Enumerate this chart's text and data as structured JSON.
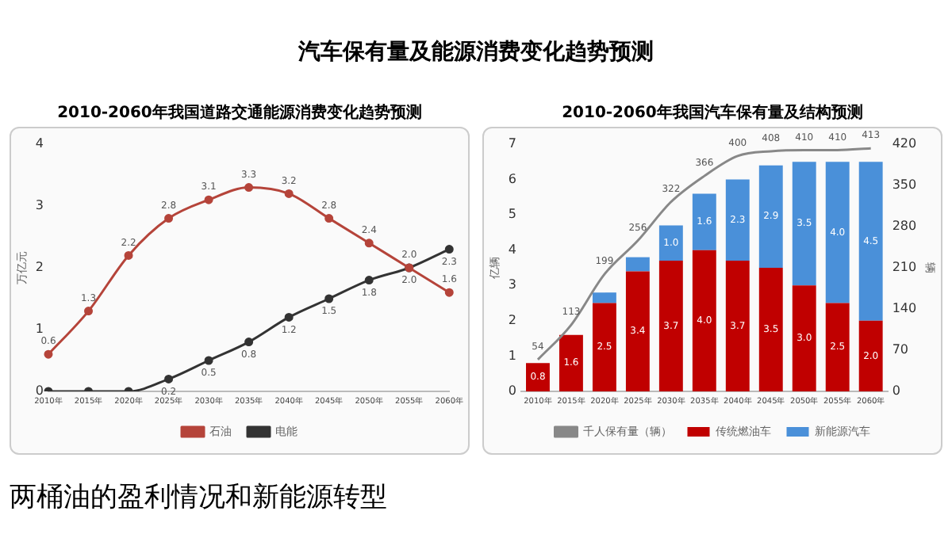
{
  "chart_data": [
    {
      "type": "other",
      "title": "汽车保有量及能源消费变化趋势预测",
      "annotations": [
        "两桶油的盈利情况和新能源转型"
      ]
    },
    {
      "type": "line",
      "title": "2010-2060年我国道路交通能源消费变化趋势预测",
      "ylabel": "万亿元",
      "categories": [
        "2010年",
        "2015年",
        "2020年",
        "2025年",
        "2030年",
        "2035年",
        "2040年",
        "2045年",
        "2050年",
        "2055年",
        "2060年"
      ],
      "series": [
        {
          "name": "石油",
          "color": "#b5443a",
          "values": [
            0.6,
            1.3,
            2.2,
            2.8,
            3.1,
            3.3,
            3.2,
            2.8,
            2.4,
            2.0,
            1.6
          ],
          "value_labels": [
            "0.6",
            "1.3",
            "2.2",
            "2.8",
            "3.1",
            "3.3",
            "3.2",
            "2.8",
            "2.4",
            "2.0",
            "1.6"
          ]
        },
        {
          "name": "电能",
          "color": "#333333",
          "values": [
            0,
            0,
            0,
            0.2,
            0.5,
            0.8,
            1.2,
            1.5,
            1.8,
            2.0,
            2.3
          ],
          "value_labels": [
            null,
            null,
            null,
            "0.2",
            "0.5",
            "0.8",
            "1.2",
            "1.5",
            "1.8",
            "2.0",
            "2.3"
          ]
        }
      ],
      "ylim": [
        0,
        4
      ],
      "yticks": [
        0,
        1,
        2,
        3,
        4
      ],
      "grid": false,
      "legend": "bottom",
      "marker": "circle"
    },
    {
      "type": "bar",
      "stacked": true,
      "title": "2010-2060年我国汽车保有量及结构预测",
      "ylabel": "亿辆",
      "y2label": "辆",
      "categories": [
        "2010年",
        "2015年",
        "2020年",
        "2025年",
        "2030年",
        "2035年",
        "2040年",
        "2045年",
        "2050年",
        "2055年",
        "2060年"
      ],
      "series": [
        {
          "name": "传统燃油车",
          "color": "#c00000",
          "values": [
            0.8,
            1.6,
            2.5,
            3.4,
            3.7,
            4.0,
            3.7,
            3.5,
            3.0,
            2.5,
            2.0
          ],
          "value_labels": [
            "0.8",
            "1.6",
            "2.5",
            "3.4",
            "3.7",
            "4.0",
            "3.7",
            "3.5",
            "3.0",
            "2.5",
            "2.0"
          ]
        },
        {
          "name": "新能源汽车",
          "color": "#4a90d9",
          "values": [
            0,
            0,
            0.3,
            0.4,
            1.0,
            1.6,
            2.3,
            2.9,
            3.5,
            4.0,
            4.5
          ],
          "value_labels": [
            null,
            null,
            null,
            null,
            "1.0",
            "1.6",
            "2.3",
            "2.9",
            "3.5",
            "4.0",
            "4.5"
          ]
        },
        {
          "name": "千人保有量（辆）",
          "type": "line",
          "axis": "y2",
          "color": "#888888",
          "marker": "none",
          "values": [
            54,
            113,
            199,
            256,
            322,
            366,
            400,
            408,
            410,
            410,
            413
          ],
          "value_labels": [
            "54",
            "113",
            "199",
            "256",
            "322",
            "366",
            "400",
            "408",
            "410",
            "410",
            "413"
          ]
        }
      ],
      "ylim": [
        0,
        7
      ],
      "yticks": [
        0,
        1,
        2,
        3,
        4,
        5,
        6,
        7
      ],
      "y2lim": [
        0,
        420
      ],
      "y2ticks": [
        0,
        70,
        140,
        210,
        280,
        350,
        420
      ],
      "grid": false,
      "legend": "bottom"
    }
  ]
}
